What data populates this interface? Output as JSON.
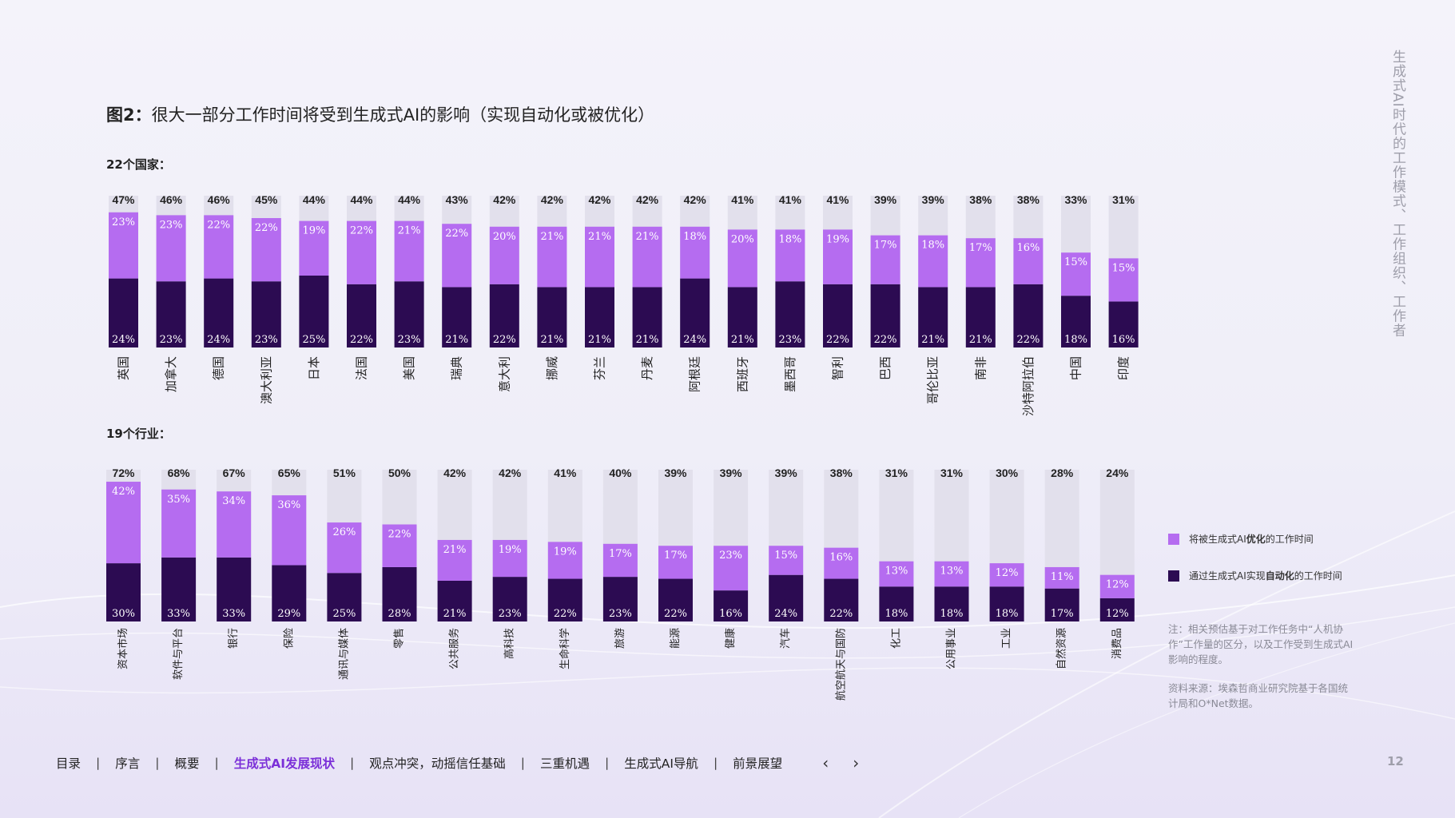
{
  "title": {
    "bold": "图2：",
    "text": "很大一部分工作时间将受到生成式AI的影响（实现自动化或被优化）"
  },
  "countries_label": "22个国家：",
  "industries_label": "19个行业：",
  "colors": {
    "optimized": "#b56cf0",
    "automated": "#2c0b52",
    "remaining": "#e2e0ec"
  },
  "legend": {
    "optimized": {
      "pre": "将被生成式AI",
      "bold": "优化",
      "post": "的工作时间"
    },
    "automated": {
      "pre": "通过生成式AI实现",
      "bold": "自动化",
      "post": "的工作时间"
    }
  },
  "note": "注：相关预估基于对工作任务中“人机协作”工作量的区分，以及工作受到生成式AI影响的程度。",
  "source": "资料来源：埃森哲商业研究院基于各国统计局和O*Net数据。",
  "side_title": "生成式AI时代的工作模式、工作组织、工作者",
  "page_number": "12",
  "nav": {
    "items": [
      "目录",
      "序言",
      "概要",
      "生成式AI发展现状",
      "观点冲突，动摇信任基础",
      "三重机遇",
      "生成式AI导航",
      "前景展望"
    ],
    "active_index": 3,
    "separator": "|",
    "prev": "‹",
    "next": "›"
  },
  "chart_data": [
    {
      "type": "bar",
      "stacked": true,
      "ylim": [
        0,
        100
      ],
      "categories": [
        "英国",
        "加拿大",
        "德国",
        "澳大利亚",
        "日本",
        "法国",
        "美国",
        "瑞典",
        "意大利",
        "挪威",
        "芬兰",
        "丹麦",
        "阿根廷",
        "西班牙",
        "墨西哥",
        "智利",
        "巴西",
        "哥伦比亚",
        "南非",
        "沙特阿拉伯",
        "中国",
        "印度"
      ],
      "totals": [
        "47%",
        "46%",
        "46%",
        "45%",
        "44%",
        "44%",
        "44%",
        "43%",
        "42%",
        "42%",
        "42%",
        "42%",
        "42%",
        "41%",
        "41%",
        "41%",
        "39%",
        "39%",
        "38%",
        "38%",
        "33%",
        "31%"
      ],
      "series": [
        {
          "name": "通过生成式AI实现自动化的工作时间",
          "values": [
            24,
            23,
            24,
            23,
            25,
            22,
            23,
            21,
            22,
            21,
            21,
            21,
            24,
            21,
            23,
            22,
            22,
            21,
            21,
            22,
            18,
            16
          ]
        },
        {
          "name": "将被生成式AI优化的工作时间",
          "values": [
            23,
            23,
            22,
            22,
            19,
            22,
            21,
            22,
            20,
            21,
            21,
            21,
            18,
            20,
            18,
            19,
            17,
            18,
            17,
            16,
            15,
            15
          ]
        }
      ]
    },
    {
      "type": "bar",
      "stacked": true,
      "ylim": [
        0,
        100
      ],
      "categories": [
        "资本市场",
        "软件与平台",
        "银行",
        "保险",
        "通讯与媒体",
        "零售",
        "公共服务",
        "高科技",
        "生命科学",
        "旅游",
        "能源",
        "健康",
        "汽车",
        "航空航天与国防",
        "化工",
        "公用事业",
        "工业",
        "自然资源",
        "消费品"
      ],
      "totals": [
        "72%",
        "68%",
        "67%",
        "65%",
        "51%",
        "50%",
        "42%",
        "42%",
        "41%",
        "40%",
        "39%",
        "39%",
        "39%",
        "38%",
        "31%",
        "31%",
        "30%",
        "28%",
        "24%"
      ],
      "series": [
        {
          "name": "通过生成式AI实现自动化的工作时间",
          "values": [
            30,
            33,
            33,
            29,
            25,
            28,
            21,
            23,
            22,
            23,
            22,
            16,
            24,
            22,
            18,
            18,
            18,
            17,
            12
          ]
        },
        {
          "name": "将被生成式AI优化的工作时间",
          "values": [
            42,
            35,
            34,
            36,
            26,
            22,
            21,
            19,
            19,
            17,
            17,
            23,
            15,
            16,
            13,
            13,
            12,
            11,
            12
          ]
        }
      ]
    }
  ]
}
